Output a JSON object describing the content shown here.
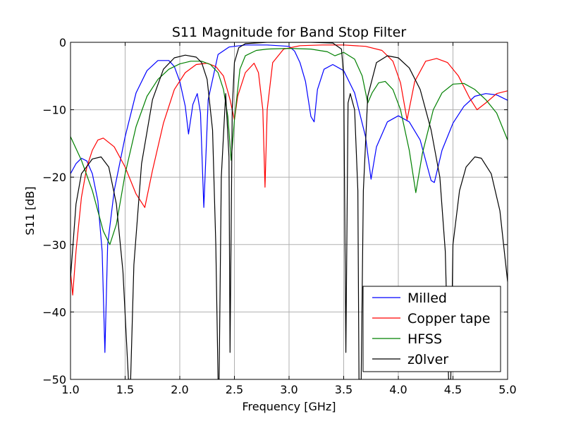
{
  "chart_data": {
    "type": "line",
    "title": "S11 Magnitude for Band Stop Filter",
    "xlabel": "Frequency [GHz]",
    "ylabel": "S11 [dB]",
    "xlim": [
      1.0,
      5.0
    ],
    "ylim": [
      -50,
      0
    ],
    "xticks": [
      "1.0",
      "1.5",
      "2.0",
      "2.5",
      "3.0",
      "3.5",
      "4.0",
      "4.5",
      "5.0"
    ],
    "yticks": [
      "0",
      "−10",
      "−20",
      "−30",
      "−40",
      "−50"
    ],
    "grid": true,
    "legend_position": "lower-right",
    "series": [
      {
        "name": "Milled",
        "color": "#0000ff",
        "points": [
          [
            1.0,
            -19.5
          ],
          [
            1.05,
            -18.0
          ],
          [
            1.1,
            -17.2
          ],
          [
            1.15,
            -17.6
          ],
          [
            1.2,
            -19.5
          ],
          [
            1.25,
            -23.5
          ],
          [
            1.29,
            -31
          ],
          [
            1.315,
            -46
          ],
          [
            1.34,
            -30
          ],
          [
            1.4,
            -22
          ],
          [
            1.5,
            -14
          ],
          [
            1.6,
            -7.5
          ],
          [
            1.7,
            -4.2
          ],
          [
            1.8,
            -2.7
          ],
          [
            1.9,
            -2.7
          ],
          [
            1.95,
            -3.6
          ],
          [
            2.0,
            -5.8
          ],
          [
            2.05,
            -9.5
          ],
          [
            2.08,
            -13.6
          ],
          [
            2.12,
            -9.2
          ],
          [
            2.16,
            -7.6
          ],
          [
            2.19,
            -10.5
          ],
          [
            2.22,
            -24.5
          ],
          [
            2.26,
            -8.5
          ],
          [
            2.35,
            -1.8
          ],
          [
            2.45,
            -0.7
          ],
          [
            2.6,
            -0.4
          ],
          [
            2.8,
            -0.4
          ],
          [
            3.0,
            -0.6
          ],
          [
            3.05,
            -1.3
          ],
          [
            3.1,
            -3.0
          ],
          [
            3.15,
            -5.8
          ],
          [
            3.2,
            -11.0
          ],
          [
            3.23,
            -11.8
          ],
          [
            3.26,
            -7.0
          ],
          [
            3.32,
            -4.0
          ],
          [
            3.4,
            -3.3
          ],
          [
            3.5,
            -4.2
          ],
          [
            3.6,
            -7.5
          ],
          [
            3.7,
            -14.0
          ],
          [
            3.75,
            -20.3
          ],
          [
            3.8,
            -15.5
          ],
          [
            3.9,
            -11.8
          ],
          [
            4.0,
            -10.9
          ],
          [
            4.1,
            -11.8
          ],
          [
            4.2,
            -14.5
          ],
          [
            4.3,
            -20.5
          ],
          [
            4.33,
            -20.8
          ],
          [
            4.4,
            -16.0
          ],
          [
            4.5,
            -12.0
          ],
          [
            4.6,
            -9.5
          ],
          [
            4.7,
            -8.0
          ],
          [
            4.8,
            -7.6
          ],
          [
            4.9,
            -7.8
          ],
          [
            5.0,
            -8.6
          ]
        ]
      },
      {
        "name": "Copper tape",
        "color": "#ff0000",
        "points": [
          [
            1.0,
            -34
          ],
          [
            1.02,
            -37.5
          ],
          [
            1.05,
            -31
          ],
          [
            1.1,
            -23
          ],
          [
            1.15,
            -18.5
          ],
          [
            1.2,
            -16
          ],
          [
            1.25,
            -14.5
          ],
          [
            1.3,
            -14.2
          ],
          [
            1.4,
            -15.5
          ],
          [
            1.5,
            -18.5
          ],
          [
            1.6,
            -22.5
          ],
          [
            1.68,
            -24.5
          ],
          [
            1.75,
            -19
          ],
          [
            1.85,
            -12
          ],
          [
            1.95,
            -7.0
          ],
          [
            2.05,
            -4.5
          ],
          [
            2.15,
            -3.3
          ],
          [
            2.25,
            -3.1
          ],
          [
            2.33,
            -3.6
          ],
          [
            2.4,
            -5.0
          ],
          [
            2.46,
            -8.5
          ],
          [
            2.5,
            -11.5
          ],
          [
            2.53,
            -8.0
          ],
          [
            2.6,
            -4.5
          ],
          [
            2.68,
            -3.1
          ],
          [
            2.72,
            -4.5
          ],
          [
            2.76,
            -10.0
          ],
          [
            2.78,
            -21.5
          ],
          [
            2.8,
            -10.0
          ],
          [
            2.85,
            -3.0
          ],
          [
            2.95,
            -1.0
          ],
          [
            3.1,
            -0.5
          ],
          [
            3.3,
            -0.4
          ],
          [
            3.5,
            -0.4
          ],
          [
            3.7,
            -0.6
          ],
          [
            3.85,
            -1.2
          ],
          [
            3.95,
            -2.8
          ],
          [
            4.02,
            -6.0
          ],
          [
            4.08,
            -11.5
          ],
          [
            4.15,
            -5.8
          ],
          [
            4.25,
            -2.8
          ],
          [
            4.35,
            -2.4
          ],
          [
            4.45,
            -3.0
          ],
          [
            4.55,
            -5.0
          ],
          [
            4.65,
            -8.2
          ],
          [
            4.72,
            -10.0
          ],
          [
            4.8,
            -9.0
          ],
          [
            4.9,
            -7.6
          ],
          [
            5.0,
            -7.2
          ]
        ]
      },
      {
        "name": "HFSS",
        "color": "#008000",
        "points": [
          [
            1.0,
            -14
          ],
          [
            1.1,
            -17.5
          ],
          [
            1.2,
            -22
          ],
          [
            1.3,
            -28
          ],
          [
            1.36,
            -30
          ],
          [
            1.42,
            -27
          ],
          [
            1.5,
            -19.5
          ],
          [
            1.6,
            -12.5
          ],
          [
            1.7,
            -8.0
          ],
          [
            1.8,
            -5.5
          ],
          [
            1.9,
            -4.0
          ],
          [
            2.0,
            -3.2
          ],
          [
            2.1,
            -2.8
          ],
          [
            2.2,
            -2.8
          ],
          [
            2.28,
            -3.3
          ],
          [
            2.35,
            -4.5
          ],
          [
            2.4,
            -7.0
          ],
          [
            2.44,
            -11.0
          ],
          [
            2.47,
            -17.5
          ],
          [
            2.5,
            -11.5
          ],
          [
            2.55,
            -4.0
          ],
          [
            2.6,
            -2.0
          ],
          [
            2.7,
            -1.2
          ],
          [
            2.8,
            -1.0
          ],
          [
            3.0,
            -0.9
          ],
          [
            3.2,
            -1.0
          ],
          [
            3.35,
            -1.4
          ],
          [
            3.42,
            -2.0
          ],
          [
            3.5,
            -1.5
          ],
          [
            3.6,
            -2.5
          ],
          [
            3.67,
            -5.0
          ],
          [
            3.72,
            -9.0
          ],
          [
            3.76,
            -7.5
          ],
          [
            3.82,
            -6.0
          ],
          [
            3.88,
            -5.8
          ],
          [
            3.95,
            -7.0
          ],
          [
            4.02,
            -10.0
          ],
          [
            4.1,
            -16.0
          ],
          [
            4.16,
            -22.3
          ],
          [
            4.22,
            -16.5
          ],
          [
            4.32,
            -10.0
          ],
          [
            4.4,
            -7.5
          ],
          [
            4.5,
            -6.2
          ],
          [
            4.6,
            -6.1
          ],
          [
            4.7,
            -7.0
          ],
          [
            4.8,
            -8.5
          ],
          [
            4.9,
            -10.5
          ],
          [
            5.0,
            -14.5
          ]
        ]
      },
      {
        "name": "z0lver",
        "color": "#000000",
        "points": [
          [
            1.0,
            -35
          ],
          [
            1.05,
            -24
          ],
          [
            1.1,
            -19.5
          ],
          [
            1.2,
            -17.3
          ],
          [
            1.28,
            -17.0
          ],
          [
            1.35,
            -18.5
          ],
          [
            1.42,
            -24
          ],
          [
            1.48,
            -34
          ],
          [
            1.53,
            -50
          ],
          [
            1.55,
            -50
          ],
          [
            1.58,
            -33
          ],
          [
            1.65,
            -18
          ],
          [
            1.75,
            -8.5
          ],
          [
            1.85,
            -4.0
          ],
          [
            1.95,
            -2.3
          ],
          [
            2.05,
            -1.9
          ],
          [
            2.15,
            -2.2
          ],
          [
            2.2,
            -3.0
          ],
          [
            2.25,
            -5.5
          ],
          [
            2.3,
            -13
          ],
          [
            2.33,
            -30
          ],
          [
            2.35,
            -50
          ],
          [
            2.36,
            -50
          ],
          [
            2.38,
            -20
          ],
          [
            2.42,
            -7.6
          ],
          [
            2.45,
            -17
          ],
          [
            2.46,
            -46
          ],
          [
            2.48,
            -10
          ],
          [
            2.5,
            -3.0
          ],
          [
            2.54,
            -0.8
          ],
          [
            2.6,
            -0.2
          ],
          [
            2.8,
            0
          ],
          [
            3.0,
            0
          ],
          [
            3.2,
            0
          ],
          [
            3.4,
            -0.1
          ],
          [
            3.48,
            -1.0
          ],
          [
            3.5,
            -5.0
          ],
          [
            3.52,
            -46
          ],
          [
            3.54,
            -9.0
          ],
          [
            3.56,
            -7.6
          ],
          [
            3.6,
            -10
          ],
          [
            3.63,
            -22
          ],
          [
            3.64,
            -50
          ],
          [
            3.66,
            -50
          ],
          [
            3.68,
            -22
          ],
          [
            3.72,
            -8.0
          ],
          [
            3.8,
            -3.0
          ],
          [
            3.9,
            -2.0
          ],
          [
            4.0,
            -2.3
          ],
          [
            4.1,
            -3.8
          ],
          [
            4.2,
            -7.0
          ],
          [
            4.3,
            -13
          ],
          [
            4.38,
            -20
          ],
          [
            4.43,
            -31
          ],
          [
            4.46,
            -50
          ],
          [
            4.48,
            -50
          ],
          [
            4.5,
            -30
          ],
          [
            4.56,
            -22
          ],
          [
            4.62,
            -18.5
          ],
          [
            4.7,
            -17.0
          ],
          [
            4.76,
            -17.2
          ],
          [
            4.85,
            -19.5
          ],
          [
            4.93,
            -25
          ],
          [
            5.0,
            -35.5
          ]
        ]
      }
    ]
  }
}
